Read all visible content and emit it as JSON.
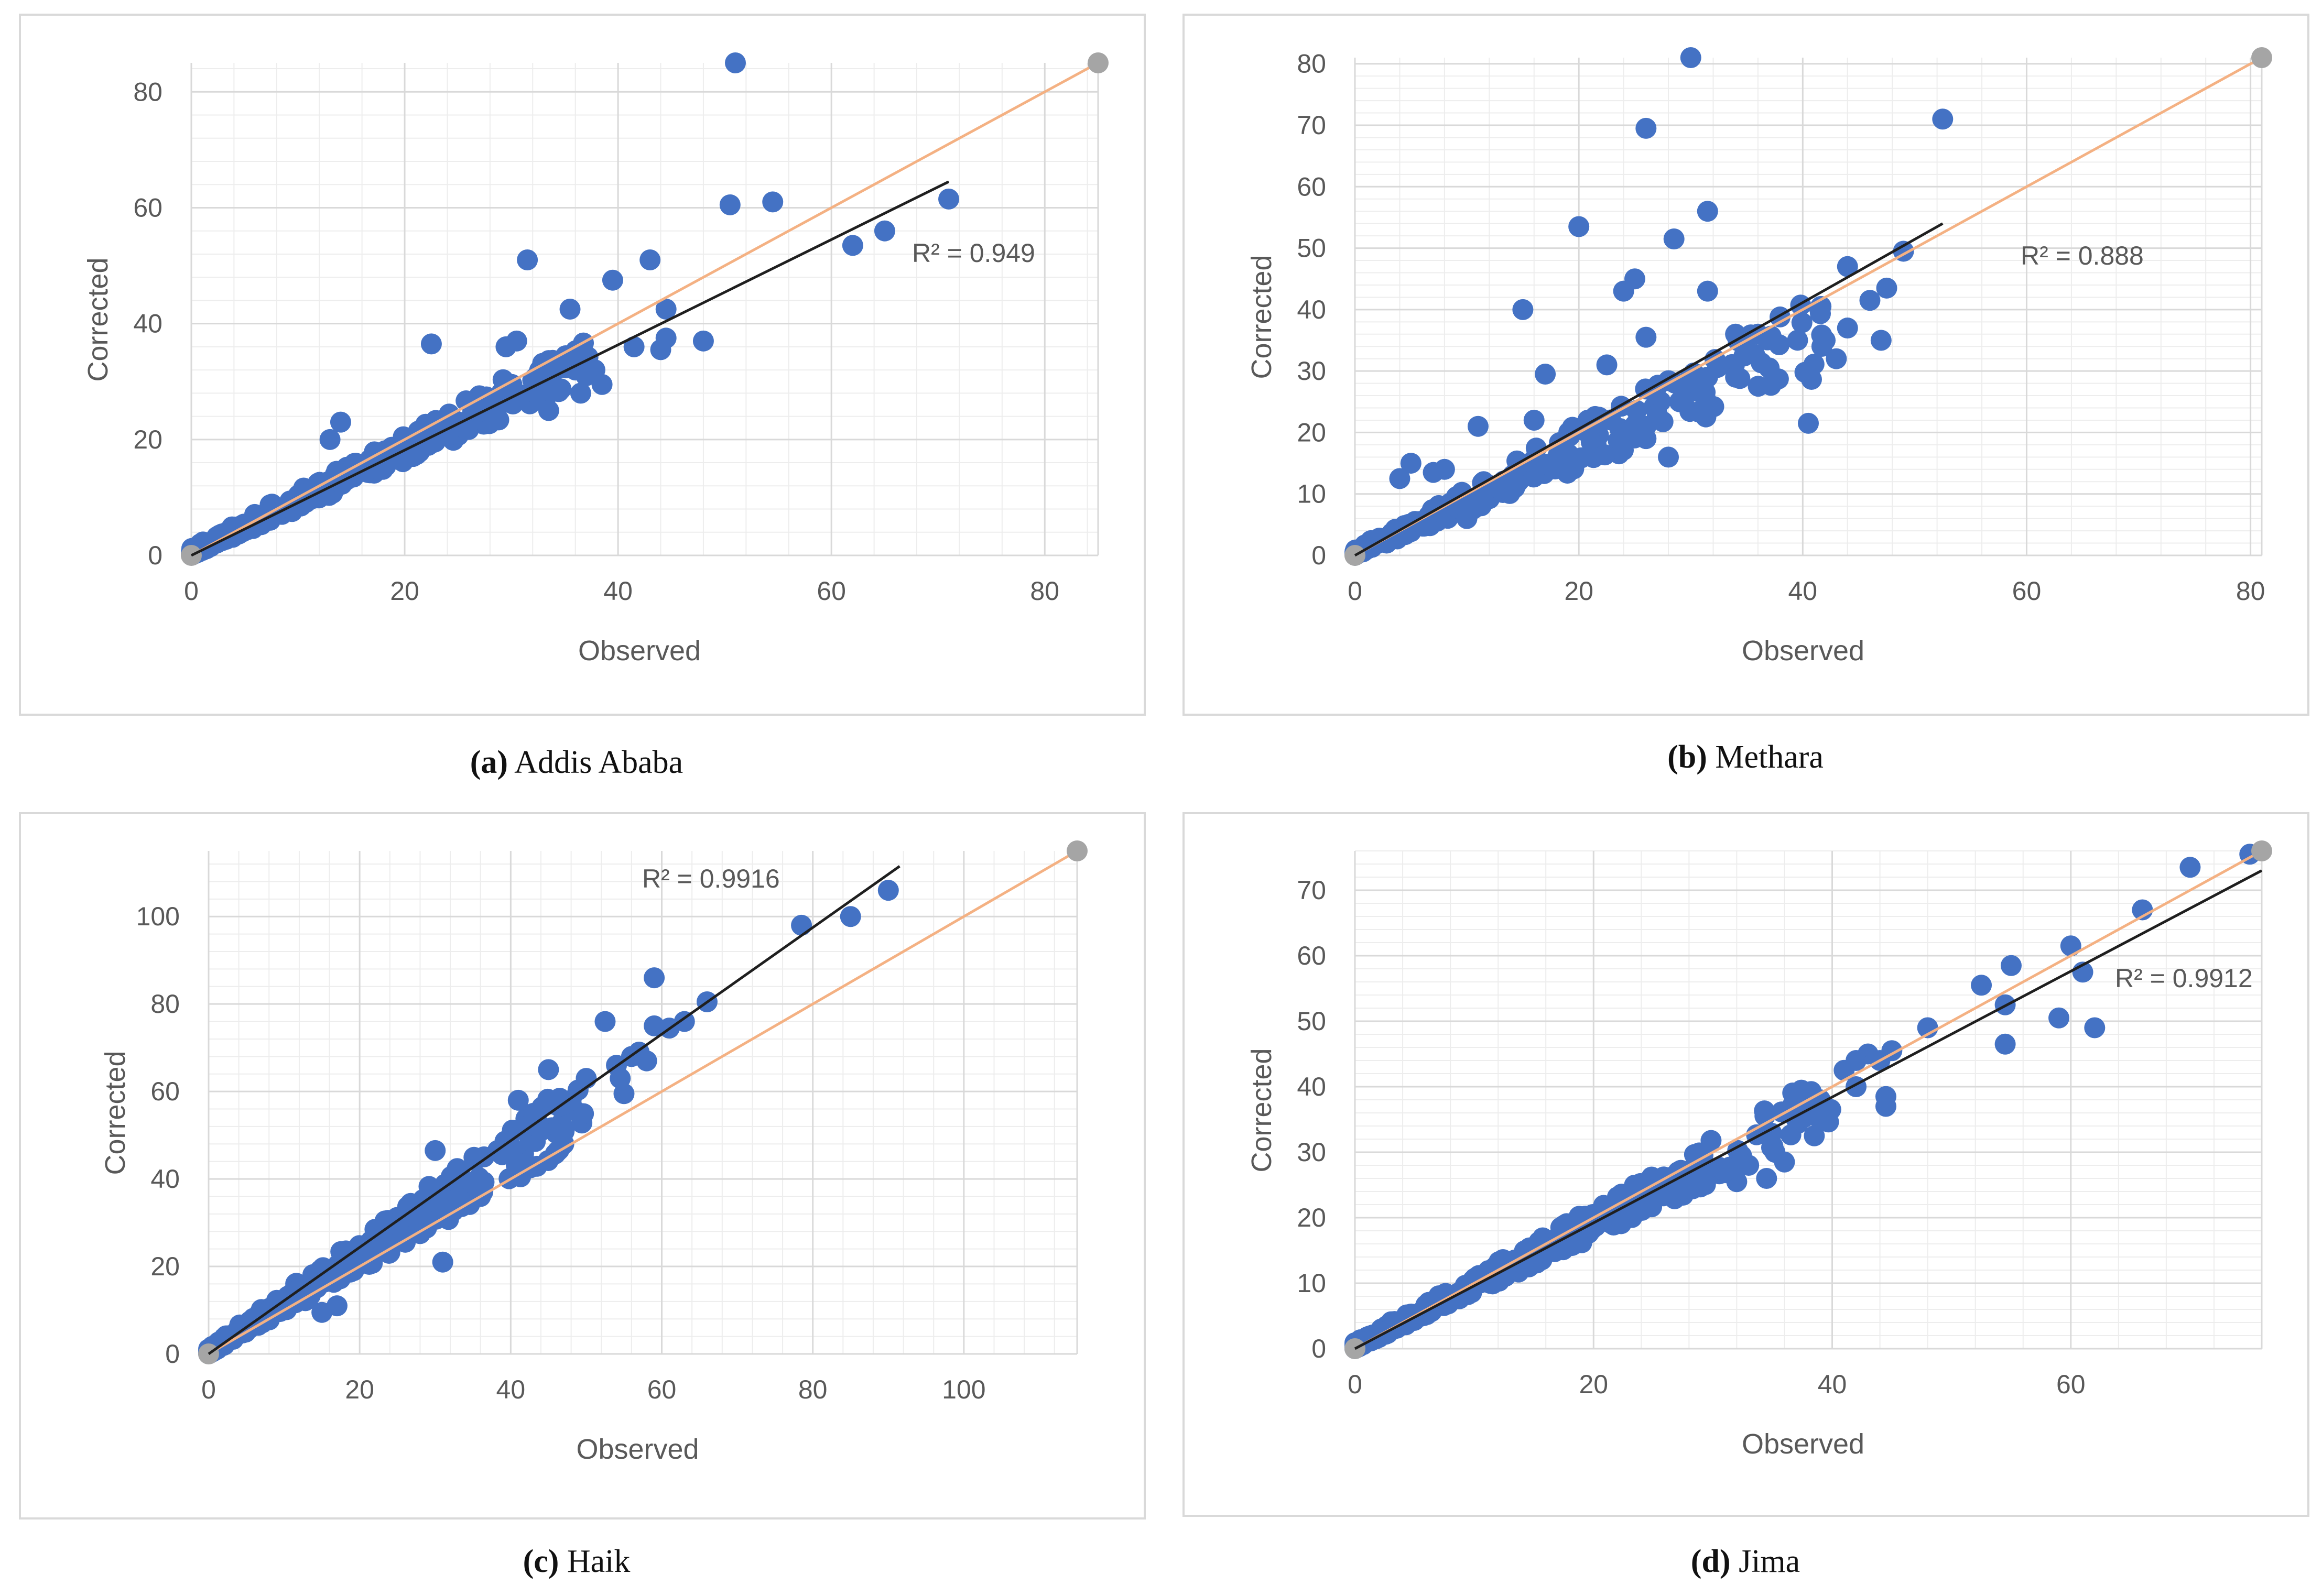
{
  "colors": {
    "points": "#4472c4",
    "trendline": "#1f1f1f",
    "reference_line": "#f4b183",
    "reference_marker": "#a5a5a5",
    "gridline_major": "#d9d9d9",
    "gridline_minor": "#ededed",
    "axis_text": "#595959"
  },
  "chart_data": [
    {
      "id": "a",
      "type": "scatter",
      "caption_letter": "(a)",
      "caption_name": "Addis Ababa",
      "xlabel": "Observed",
      "ylabel": "Corrected",
      "xlim": [
        0,
        85
      ],
      "ylim": [
        0,
        85
      ],
      "xticks": [
        0,
        20,
        40,
        60,
        80
      ],
      "yticks": [
        0,
        20,
        40,
        60,
        80
      ],
      "r2_label": "R² = 0.949",
      "trend": [
        [
          0,
          0
        ],
        [
          71,
          64.5
        ]
      ],
      "reference": [
        [
          0,
          0
        ],
        [
          85,
          85
        ]
      ],
      "outliers": [
        [
          51,
          85
        ],
        [
          50.5,
          60.5
        ],
        [
          54.5,
          61
        ],
        [
          71,
          61.5
        ],
        [
          62,
          53.5
        ],
        [
          65,
          56
        ],
        [
          31.5,
          51
        ],
        [
          39.5,
          47.5
        ],
        [
          43,
          51
        ],
        [
          44.5,
          42.5
        ],
        [
          41.5,
          36
        ],
        [
          44,
          35.5
        ],
        [
          44.5,
          37.5
        ],
        [
          48,
          37
        ],
        [
          35.5,
          42.5
        ],
        [
          29.5,
          36
        ],
        [
          30.5,
          37
        ],
        [
          22.5,
          36.5
        ],
        [
          33,
          32
        ],
        [
          35,
          34
        ],
        [
          36,
          32
        ],
        [
          37,
          31
        ],
        [
          38.5,
          29.5
        ],
        [
          36.5,
          28
        ],
        [
          33.5,
          25
        ],
        [
          13,
          20
        ],
        [
          14,
          23
        ]
      ],
      "band": {
        "x_max": 38,
        "lower": 0.8,
        "upper": 1.0,
        "upper_spread": 1.4,
        "count": 320
      }
    },
    {
      "id": "b",
      "type": "scatter",
      "caption_letter": "(b)",
      "caption_name": "Methara",
      "xlabel": "Observed",
      "ylabel": "Corrected",
      "xlim": [
        0,
        81
      ],
      "ylim": [
        0,
        81
      ],
      "xticks": [
        0,
        20,
        40,
        60,
        80
      ],
      "yticks": [
        0,
        10,
        20,
        30,
        40,
        50,
        60,
        70,
        80
      ],
      "r2_label": "R² = 0.888",
      "trend": [
        [
          0,
          0
        ],
        [
          52.5,
          54
        ]
      ],
      "reference": [
        [
          0,
          0
        ],
        [
          81,
          81
        ]
      ],
      "outliers": [
        [
          30,
          81
        ],
        [
          52.5,
          71
        ],
        [
          26,
          69.5
        ],
        [
          20,
          53.5
        ],
        [
          31.5,
          56
        ],
        [
          28.5,
          51.5
        ],
        [
          15,
          40
        ],
        [
          31.5,
          43
        ],
        [
          24,
          43
        ],
        [
          25,
          45
        ],
        [
          26,
          35.5
        ],
        [
          22.5,
          31
        ],
        [
          17,
          29.5
        ],
        [
          16,
          22
        ],
        [
          11,
          21
        ],
        [
          44,
          47
        ],
        [
          46,
          41.5
        ],
        [
          47.5,
          43.5
        ],
        [
          49,
          49.5
        ],
        [
          40.5,
          21.5
        ],
        [
          42,
          35
        ],
        [
          43,
          32
        ],
        [
          44,
          37
        ],
        [
          47,
          35
        ],
        [
          36,
          36
        ],
        [
          34,
          36
        ],
        [
          34,
          29
        ],
        [
          35,
          33
        ],
        [
          37,
          30.5
        ],
        [
          31.5,
          29
        ],
        [
          28,
          16
        ],
        [
          26,
          19
        ],
        [
          26,
          21
        ],
        [
          27,
          23
        ],
        [
          29,
          25
        ],
        [
          5,
          15
        ],
        [
          4,
          12.5
        ],
        [
          7,
          13.5
        ],
        [
          8,
          14
        ],
        [
          10,
          6
        ]
      ],
      "band": {
        "x_max": 42,
        "lower": 0.7,
        "upper": 1.02,
        "upper_spread": 1.3,
        "count": 220
      }
    },
    {
      "id": "c",
      "type": "scatter",
      "caption_letter": "(c)",
      "caption_name": "Haik",
      "xlabel": "Observed",
      "ylabel": "Corrected",
      "xlim": [
        0,
        115
      ],
      "ylim": [
        0,
        115
      ],
      "xticks": [
        0,
        20,
        40,
        60,
        80,
        100
      ],
      "yticks": [
        0,
        20,
        40,
        60,
        80,
        100
      ],
      "r2_label": "R² = 0.9916",
      "trend": [
        [
          0,
          0
        ],
        [
          91.5,
          111.5
        ]
      ],
      "reference": [
        [
          0,
          0
        ],
        [
          115,
          115
        ]
      ],
      "outliers": [
        [
          90,
          106
        ],
        [
          85,
          100
        ],
        [
          78.5,
          98
        ],
        [
          59,
          86
        ],
        [
          66,
          80.5
        ],
        [
          63,
          76
        ],
        [
          52.5,
          76
        ],
        [
          59,
          75
        ],
        [
          61,
          74.5
        ],
        [
          56,
          68
        ],
        [
          57,
          69
        ],
        [
          58,
          67
        ],
        [
          54,
          66
        ],
        [
          54.5,
          63
        ],
        [
          55,
          59.5
        ],
        [
          50,
          63
        ],
        [
          45,
          65
        ],
        [
          41,
          58
        ],
        [
          43,
          55
        ],
        [
          47,
          57
        ],
        [
          48,
          58
        ],
        [
          46,
          50.5
        ],
        [
          44,
          51
        ],
        [
          30,
          46.5
        ],
        [
          36,
          36
        ],
        [
          31,
          21
        ],
        [
          28,
          27.5
        ],
        [
          25.5,
          26
        ],
        [
          17,
          11
        ],
        [
          15,
          9.5
        ]
      ],
      "band": {
        "x_max": 50,
        "lower": 0.95,
        "upper": 1.28,
        "upper_spread": 1.5,
        "count": 300
      }
    },
    {
      "id": "d",
      "type": "scatter",
      "caption_letter": "(d)",
      "caption_name": "Jima",
      "xlabel": "Observed",
      "ylabel": "Corrected",
      "xlim": [
        0,
        76
      ],
      "ylim": [
        0,
        76
      ],
      "xticks": [
        0,
        20,
        40,
        60
      ],
      "yticks": [
        0,
        10,
        20,
        30,
        40,
        50,
        60,
        70
      ],
      "r2_label": "R² = 0.9912",
      "trend": [
        [
          0,
          0
        ],
        [
          76,
          73
        ]
      ],
      "reference": [
        [
          0,
          0
        ],
        [
          76,
          76
        ]
      ],
      "outliers": [
        [
          75,
          75.5
        ],
        [
          70,
          73.5
        ],
        [
          66,
          67
        ],
        [
          60,
          61.5
        ],
        [
          61,
          57.5
        ],
        [
          55,
          58.5
        ],
        [
          52.5,
          55.5
        ],
        [
          54.5,
          52.5
        ],
        [
          54.5,
          46.5
        ],
        [
          59,
          50.5
        ],
        [
          62,
          49
        ],
        [
          48,
          49
        ],
        [
          45,
          45.5
        ],
        [
          43,
          45
        ],
        [
          44,
          44
        ],
        [
          42,
          44
        ],
        [
          41,
          42.5
        ],
        [
          42,
          40
        ],
        [
          44.5,
          38.5
        ],
        [
          44.5,
          37
        ],
        [
          39,
          38
        ],
        [
          38.5,
          32.5
        ],
        [
          37,
          35
        ],
        [
          36,
          28.5
        ],
        [
          34.5,
          26
        ],
        [
          32,
          25.5
        ],
        [
          31,
          27
        ],
        [
          33,
          28
        ]
      ],
      "band": {
        "x_max": 40,
        "lower": 0.85,
        "upper": 1.05,
        "upper_spread": 1.0,
        "count": 320
      }
    }
  ]
}
